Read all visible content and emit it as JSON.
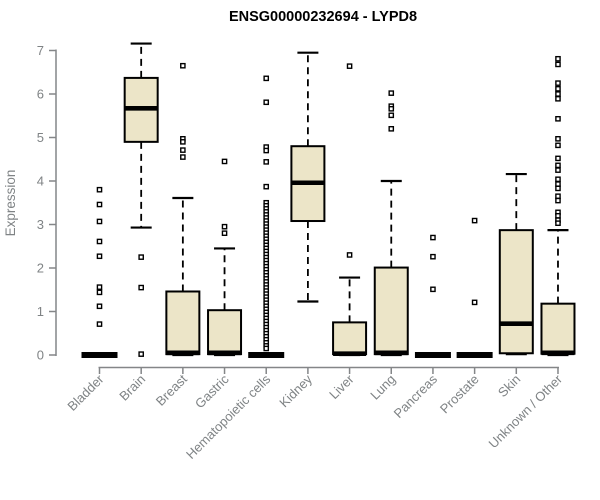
{
  "title": "ENSG00000232694 - LYPD8",
  "chart_data": {
    "type": "boxplot",
    "title": "ENSG00000232694 - LYPD8",
    "xlabel": "",
    "ylabel": "Expression",
    "ylim": [
      0,
      7
    ],
    "yticks": [
      0,
      1,
      2,
      3,
      4,
      5,
      6,
      7
    ],
    "grid": false,
    "legend": false,
    "categories": [
      "Bladder",
      "Brain",
      "Breast",
      "Gastric",
      "Hematopoietic cells",
      "Kidney",
      "Liver",
      "Lung",
      "Pancreas",
      "Prostate",
      "Skin",
      "Unknown / Other"
    ],
    "boxes": [
      {
        "label": "Bladder",
        "q1": 0,
        "median": 0,
        "q3": 0,
        "whisker_low": 0,
        "whisker_high": 0,
        "outliers": [
          3.8,
          3.46,
          3.07,
          2.61,
          2.27,
          1.56,
          1.44,
          1.12,
          0.71
        ]
      },
      {
        "label": "Brain",
        "q1": 4.9,
        "median": 5.67,
        "q3": 6.37,
        "whisker_low": 2.93,
        "whisker_high": 7.16,
        "outliers": [
          2.25,
          1.55,
          0.02
        ]
      },
      {
        "label": "Breast",
        "q1": 0.02,
        "median": 0.05,
        "q3": 1.46,
        "whisker_low": 0,
        "whisker_high": 3.61,
        "outliers": [
          6.65,
          4.97,
          4.9,
          4.71,
          4.55
        ]
      },
      {
        "label": "Gastric",
        "q1": 0.02,
        "median": 0.05,
        "q3": 1.03,
        "whisker_low": 0,
        "whisker_high": 2.45,
        "outliers": [
          4.45,
          2.95,
          2.8
        ]
      },
      {
        "label": "Hematopoietic cells",
        "q1": 0,
        "median": 0,
        "q3": 0,
        "whisker_low": 0,
        "whisker_high": 0,
        "outliers": [
          6.36,
          5.81,
          4.78,
          4.7,
          4.44,
          3.87,
          3.5,
          3.43,
          3.36,
          3.29,
          3.22,
          3.15,
          3.08,
          3.01,
          2.94,
          2.87,
          2.8,
          2.73,
          2.66,
          2.59,
          2.52,
          2.45,
          2.38,
          2.31,
          2.24,
          2.17,
          2.1,
          2.03,
          1.96,
          1.89,
          1.82,
          1.75,
          1.68,
          1.61,
          1.54,
          1.47,
          1.4,
          1.33,
          1.26,
          1.19,
          1.12,
          1.05,
          0.98,
          0.91,
          0.84,
          0.77,
          0.7,
          0.63,
          0.56,
          0.49,
          0.42,
          0.35,
          0.28,
          0.21,
          0.15
        ]
      },
      {
        "label": "Kidney",
        "q1": 3.08,
        "median": 3.96,
        "q3": 4.8,
        "whisker_low": 1.23,
        "whisker_high": 6.95,
        "outliers": []
      },
      {
        "label": "Liver",
        "q1": 0.02,
        "median": 0.03,
        "q3": 0.75,
        "whisker_low": 0,
        "whisker_high": 1.78,
        "outliers": [
          6.64,
          2.3
        ]
      },
      {
        "label": "Lung",
        "q1": 0.02,
        "median": 0.05,
        "q3": 2.01,
        "whisker_low": 0,
        "whisker_high": 4.0,
        "outliers": [
          6.02,
          5.72,
          5.66,
          5.51,
          5.2
        ]
      },
      {
        "label": "Pancreas",
        "q1": 0,
        "median": 0,
        "q3": 0,
        "whisker_low": 0,
        "whisker_high": 0,
        "outliers": [
          2.7,
          2.26,
          1.51
        ]
      },
      {
        "label": "Prostate",
        "q1": 0,
        "median": 0,
        "q3": 0,
        "whisker_low": 0,
        "whisker_high": 0,
        "outliers": [
          3.09,
          1.21
        ]
      },
      {
        "label": "Skin",
        "q1": 0.04,
        "median": 0.72,
        "q3": 2.87,
        "whisker_low": 0.02,
        "whisker_high": 4.16,
        "outliers": []
      },
      {
        "label": "Unknown / Other",
        "q1": 0.03,
        "median": 0.05,
        "q3": 1.18,
        "whisker_low": 0,
        "whisker_high": 2.87,
        "outliers": [
          6.81,
          6.68,
          6.25,
          6.12,
          6.0,
          5.89,
          5.43,
          4.97,
          4.82,
          4.52,
          4.36,
          4.25,
          4.04,
          3.93,
          3.83,
          3.65,
          3.55,
          3.28,
          3.2,
          3.1,
          3.03
        ]
      }
    ],
    "colors": {
      "box_fill": "#ECE5C8",
      "box_border": "#000000",
      "median": "#000000",
      "whisker": "#000000",
      "outlier_stroke": "#000000",
      "outlier_fill": "#FFFFFF",
      "axis": "#848688",
      "label": "#7F8385",
      "title": "#000000",
      "background": "#FFFFFF"
    }
  }
}
